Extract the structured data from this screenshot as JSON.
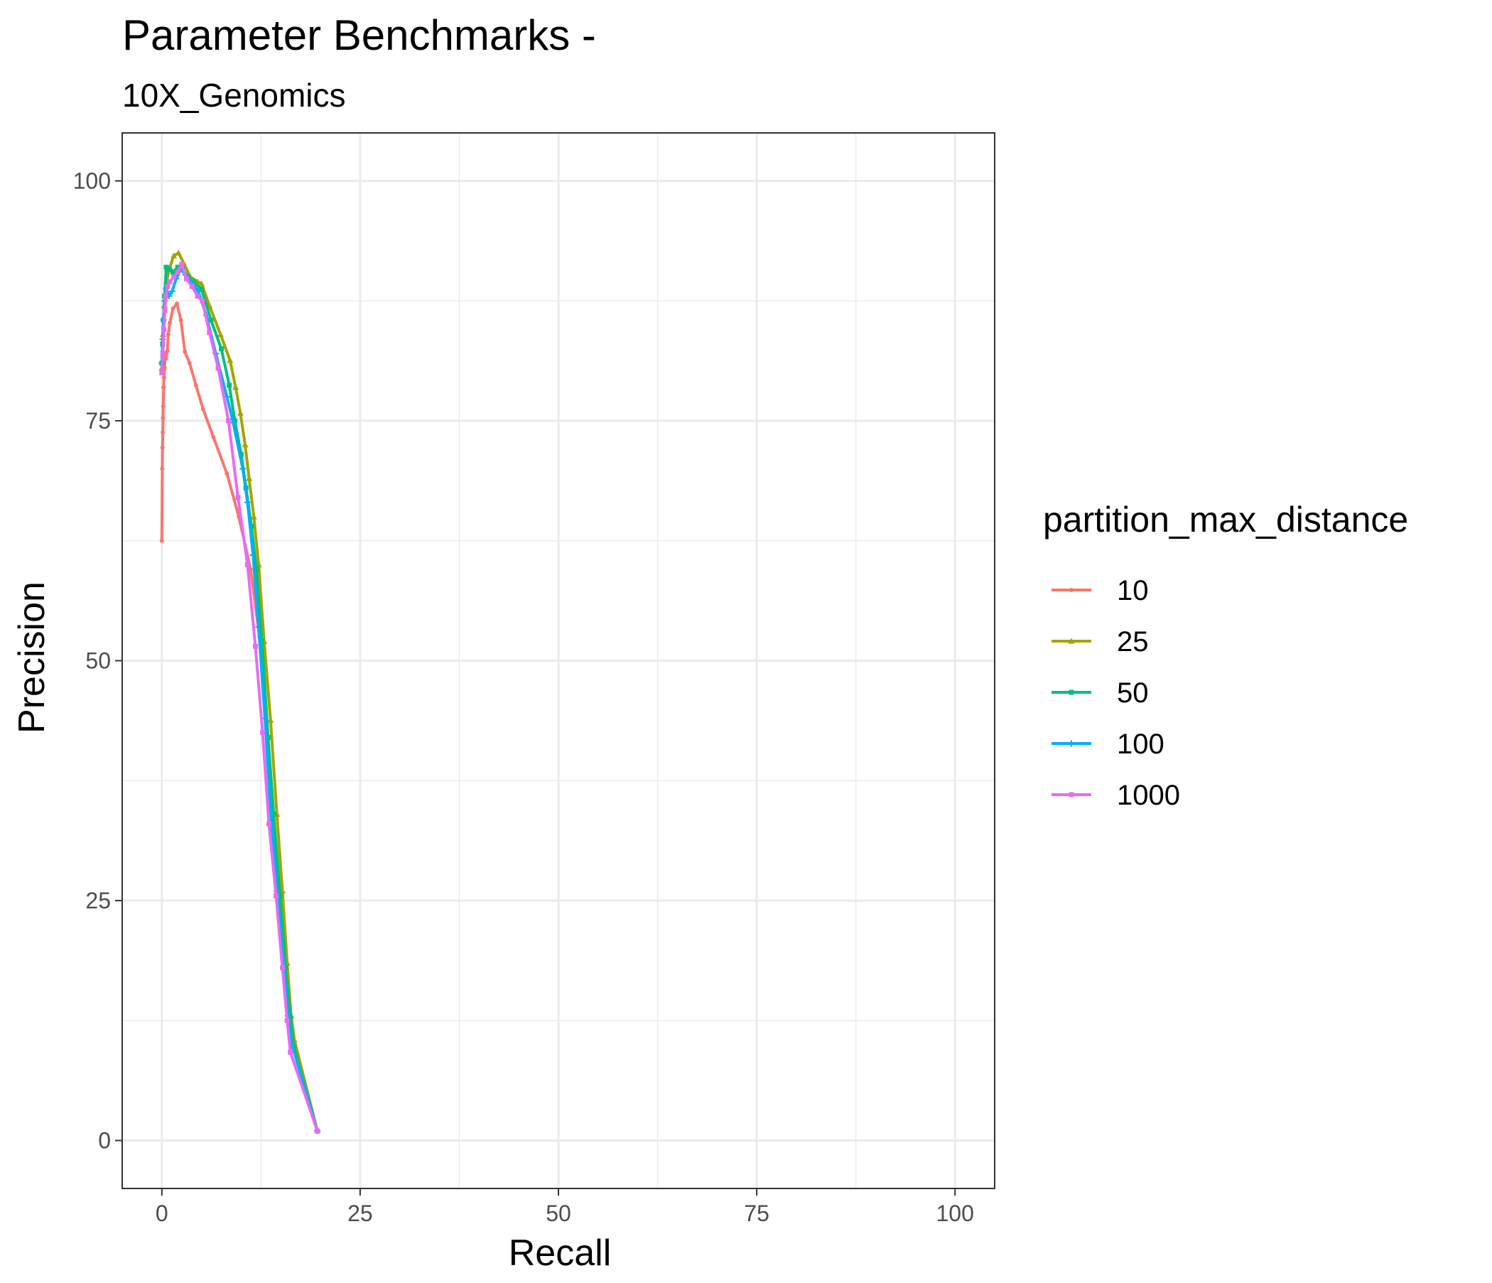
{
  "chart_data": {
    "type": "line",
    "title": "Parameter Benchmarks -",
    "subtitle": "10X_Genomics",
    "xlabel": "Recall",
    "ylabel": "Precision",
    "xlim": [
      -5,
      105
    ],
    "ylim": [
      -5,
      105
    ],
    "x_ticks": [
      0,
      25,
      50,
      75,
      100
    ],
    "y_ticks": [
      0,
      25,
      50,
      75,
      100
    ],
    "grid": true,
    "legend": {
      "title": "partition_max_distance",
      "position": "right"
    },
    "series": [
      {
        "name": "10",
        "color": "#F8766D",
        "marker": "circle",
        "points": [
          [
            0.0,
            62.5
          ],
          [
            0.05,
            70.0
          ],
          [
            0.08,
            72.2
          ],
          [
            0.12,
            73.8
          ],
          [
            0.15,
            75.3
          ],
          [
            0.18,
            76.5
          ],
          [
            0.22,
            78.5
          ],
          [
            0.28,
            79.5
          ],
          [
            0.35,
            80.5
          ],
          [
            0.42,
            82.0
          ],
          [
            0.52,
            81.5
          ],
          [
            0.7,
            82.3
          ],
          [
            0.8,
            84.0
          ],
          [
            1.0,
            85.2
          ],
          [
            1.4,
            86.7
          ],
          [
            1.9,
            87.2
          ],
          [
            2.4,
            85.5
          ],
          [
            2.9,
            82.2
          ],
          [
            3.5,
            81.0
          ],
          [
            4.3,
            78.7
          ],
          [
            5.2,
            76.2
          ],
          [
            6.5,
            73.3
          ],
          [
            8.2,
            69.5
          ],
          [
            9.7,
            65.0
          ],
          [
            11.2,
            59.5
          ],
          [
            12.3,
            52.5
          ],
          [
            13.2,
            43.0
          ],
          [
            14.0,
            34.0
          ],
          [
            14.8,
            25.5
          ],
          [
            15.6,
            18.0
          ],
          [
            16.2,
            13.0
          ],
          [
            16.6,
            10.0
          ],
          [
            19.6,
            1.0
          ]
        ]
      },
      {
        "name": "25",
        "color": "#A3A500",
        "marker": "triangle",
        "points": [
          [
            0.0,
            80.5
          ],
          [
            0.15,
            84.0
          ],
          [
            0.3,
            87.0
          ],
          [
            0.6,
            89.5
          ],
          [
            1.0,
            91.0
          ],
          [
            1.5,
            92.2
          ],
          [
            2.1,
            92.5
          ],
          [
            2.7,
            91.5
          ],
          [
            3.6,
            90.0
          ],
          [
            4.5,
            89.5
          ],
          [
            5.0,
            89.3
          ],
          [
            6.0,
            87.0
          ],
          [
            7.4,
            84.0
          ],
          [
            8.6,
            81.3
          ],
          [
            9.3,
            78.5
          ],
          [
            9.9,
            75.8
          ],
          [
            10.5,
            72.5
          ],
          [
            11.0,
            69.0
          ],
          [
            11.6,
            65.0
          ],
          [
            12.2,
            60.0
          ],
          [
            12.9,
            52.0
          ],
          [
            13.7,
            43.8
          ],
          [
            14.5,
            34.0
          ],
          [
            15.2,
            26.0
          ],
          [
            15.8,
            18.5
          ],
          [
            16.3,
            13.0
          ],
          [
            16.7,
            10.5
          ],
          [
            19.6,
            1.0
          ]
        ]
      },
      {
        "name": "50",
        "color": "#00BF7D",
        "marker": "square",
        "points": [
          [
            0.0,
            81.0
          ],
          [
            0.1,
            83.0
          ],
          [
            0.2,
            85.5
          ],
          [
            0.35,
            88.0
          ],
          [
            0.55,
            91.0
          ],
          [
            0.9,
            90.8
          ],
          [
            1.4,
            90.5
          ],
          [
            2.0,
            91.0
          ],
          [
            2.6,
            90.8
          ],
          [
            3.3,
            90.0
          ],
          [
            4.0,
            89.5
          ],
          [
            5.0,
            88.7
          ],
          [
            6.2,
            85.5
          ],
          [
            7.5,
            82.5
          ],
          [
            8.5,
            78.7
          ],
          [
            9.2,
            75.0
          ],
          [
            10.0,
            71.5
          ],
          [
            10.6,
            68.0
          ],
          [
            11.3,
            64.0
          ],
          [
            11.9,
            59.5
          ],
          [
            12.6,
            52.0
          ],
          [
            13.4,
            42.0
          ],
          [
            14.1,
            34.0
          ],
          [
            14.9,
            25.5
          ],
          [
            15.6,
            18.0
          ],
          [
            16.2,
            12.8
          ],
          [
            16.6,
            9.8
          ],
          [
            19.6,
            1.0
          ]
        ]
      },
      {
        "name": "100",
        "color": "#00B0F6",
        "marker": "plus",
        "points": [
          [
            0.0,
            81.0
          ],
          [
            0.1,
            83.5
          ],
          [
            0.2,
            85.5
          ],
          [
            0.35,
            87.5
          ],
          [
            0.55,
            88.8
          ],
          [
            0.9,
            88.0
          ],
          [
            1.3,
            88.5
          ],
          [
            1.8,
            89.8
          ],
          [
            2.4,
            90.8
          ],
          [
            3.0,
            90.2
          ],
          [
            3.7,
            89.5
          ],
          [
            4.6,
            88.5
          ],
          [
            5.6,
            86.0
          ],
          [
            6.8,
            82.0
          ],
          [
            8.2,
            77.5
          ],
          [
            9.0,
            74.8
          ],
          [
            10.2,
            70.0
          ],
          [
            10.8,
            66.5
          ],
          [
            11.5,
            61.0
          ],
          [
            12.2,
            53.5
          ],
          [
            13.0,
            44.0
          ],
          [
            13.7,
            34.5
          ],
          [
            14.5,
            26.0
          ],
          [
            15.3,
            19.0
          ],
          [
            15.9,
            13.0
          ],
          [
            16.4,
            10.0
          ],
          [
            19.6,
            1.0
          ]
        ]
      },
      {
        "name": "1000",
        "color": "#E76BF3",
        "marker": "square",
        "points": [
          [
            0.0,
            80.0
          ],
          [
            0.12,
            82.0
          ],
          [
            0.25,
            84.5
          ],
          [
            0.38,
            86.5
          ],
          [
            0.5,
            88.0
          ],
          [
            0.7,
            89.0
          ],
          [
            1.0,
            89.5
          ],
          [
            1.5,
            90.0
          ],
          [
            2.0,
            90.5
          ],
          [
            2.5,
            91.3
          ],
          [
            3.1,
            89.8
          ],
          [
            3.8,
            89.0
          ],
          [
            4.5,
            88.0
          ],
          [
            5.1,
            87.5
          ],
          [
            6.0,
            84.2
          ],
          [
            7.1,
            80.5
          ],
          [
            8.4,
            75.0
          ],
          [
            9.6,
            67.0
          ],
          [
            10.8,
            60.0
          ],
          [
            11.8,
            51.5
          ],
          [
            12.7,
            42.5
          ],
          [
            13.5,
            33.0
          ],
          [
            14.4,
            25.5
          ],
          [
            15.2,
            18.0
          ],
          [
            15.8,
            12.5
          ],
          [
            16.2,
            9.2
          ],
          [
            19.6,
            1.0
          ]
        ]
      }
    ]
  }
}
